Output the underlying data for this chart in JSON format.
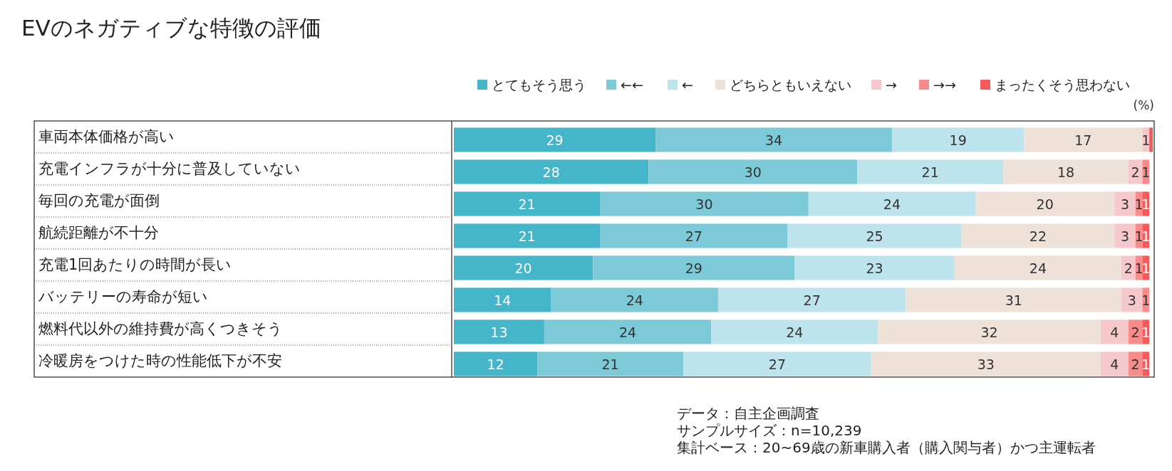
{
  "chart_data": {
    "type": "bar",
    "orientation": "horizontal",
    "stacked": true,
    "title": "EVのネガティブな特徴の評価",
    "legend": "top right",
    "categories": [
      "車両本体価格が高い",
      "充電インフラが十分に普及していない",
      "毎回の充電が面倒",
      "航続距離が不十分",
      "充電1回あたりの時間が長い",
      "バッテリーの寿命が短い",
      "燃料代以外の維持費が高くつきそう",
      "冷暖房をつけた時の性能低下が不安"
    ],
    "series": [
      {
        "name": "とてもそう思う",
        "color": "#45b5c9",
        "values": [
          29,
          28,
          21,
          21,
          20,
          14,
          13,
          12
        ],
        "value_labels": [
          "29",
          "28",
          "21",
          "21",
          "20",
          "14",
          "13",
          "12"
        ]
      },
      {
        "name": "←←",
        "color": "#7ccad8",
        "values": [
          34,
          30,
          30,
          27,
          29,
          24,
          24,
          21
        ],
        "value_labels": [
          "34",
          "30",
          "30",
          "27",
          "29",
          "24",
          "24",
          "21"
        ]
      },
      {
        "name": "←",
        "color": "#bde4ec",
        "values": [
          19,
          21,
          24,
          25,
          23,
          27,
          24,
          27
        ],
        "value_labels": [
          "19",
          "21",
          "24",
          "25",
          "23",
          "27",
          "24",
          "27"
        ]
      },
      {
        "name": "どちらともいえない",
        "color": "#ede1d8",
        "values": [
          17,
          18,
          20,
          22,
          24,
          31,
          32,
          33
        ],
        "value_labels": [
          "17",
          "18",
          "20",
          "22",
          "24",
          "31",
          "32",
          "33"
        ]
      },
      {
        "name": "→",
        "color": "#f5c9cc",
        "values": [
          1,
          2,
          3,
          3,
          2,
          3,
          4,
          4
        ],
        "value_labels": [
          "1",
          "2",
          "3",
          "3",
          "2",
          "3",
          "4",
          "4"
        ]
      },
      {
        "name": "→→",
        "color": "#fa8b8b",
        "values": [
          null,
          1,
          1,
          1,
          1,
          1,
          2,
          2
        ],
        "value_labels": [
          null,
          "1",
          "1",
          "1",
          "1",
          "1",
          "2",
          "2"
        ]
      },
      {
        "name": "まったくそう思わない",
        "color": "#f55a5a",
        "values": [
          0.5,
          null,
          1,
          1,
          1,
          null,
          1,
          1
        ],
        "value_labels": [
          null,
          null,
          "1",
          "1",
          "1",
          null,
          "1",
          "1"
        ]
      }
    ],
    "annotations": [
      "(%)",
      "データ：自主企画調査",
      "サンプルサイズ：n=10,239",
      "集計ベース：20~69歳の新車購入者（購入関与者）かつ主運転者"
    ]
  }
}
